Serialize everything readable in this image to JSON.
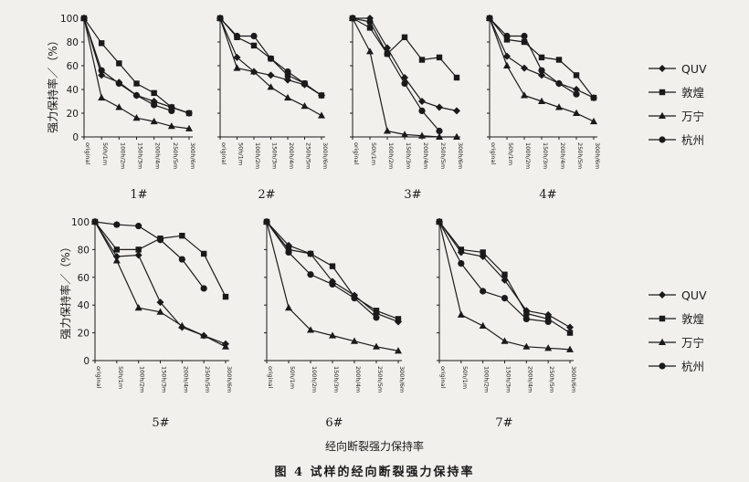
{
  "figure": {
    "caption": "图 4  试样的经向断裂强力保持率",
    "x_title": "经向断裂强力保持率",
    "y_title": "强力保持率／（%）"
  },
  "chart_data": [
    {
      "type": "line",
      "label": "1#",
      "categories": [
        "original",
        "50h/1m",
        "100h/2m",
        "150h/3m",
        "200h/4m",
        "250h/5m",
        "300h/6m"
      ],
      "ylim": [
        0,
        100
      ],
      "yticks": [
        0,
        20,
        40,
        60,
        80,
        100
      ],
      "series": [
        {
          "name": "QUV",
          "values": [
            100,
            52,
            46,
            35,
            30,
            25,
            20
          ]
        },
        {
          "name": "敦煌",
          "values": [
            100,
            79,
            62,
            45,
            37,
            25,
            20
          ]
        },
        {
          "name": "万宁",
          "values": [
            100,
            33,
            25,
            16,
            13,
            9,
            7
          ]
        },
        {
          "name": "杭州",
          "values": [
            100,
            56,
            45,
            35,
            27,
            22,
            null
          ]
        }
      ]
    },
    {
      "type": "line",
      "label": "2#",
      "categories": [
        "original",
        "50h/1m",
        "100h/2m",
        "150h/3m",
        "200h/4m",
        "250h/5m",
        "300h/6m"
      ],
      "ylim": [
        0,
        100
      ],
      "yticks": [
        0,
        20,
        40,
        60,
        80,
        100
      ],
      "series": [
        {
          "name": "QUV",
          "values": [
            100,
            67,
            55,
            52,
            48,
            44,
            35
          ]
        },
        {
          "name": "敦煌",
          "values": [
            100,
            84,
            77,
            66,
            52,
            45,
            35
          ]
        },
        {
          "name": "万宁",
          "values": [
            100,
            58,
            55,
            42,
            33,
            26,
            18
          ]
        },
        {
          "name": "杭州",
          "values": [
            100,
            85,
            85,
            66,
            55,
            45,
            null
          ]
        }
      ]
    },
    {
      "type": "line",
      "label": "3#",
      "categories": [
        "original",
        "50h/1m",
        "100h/2m",
        "150h/3m",
        "200h/4m",
        "250h/5m",
        "300h/6m"
      ],
      "ylim": [
        0,
        100
      ],
      "yticks": [
        0,
        20,
        40,
        60,
        80,
        100
      ],
      "series": [
        {
          "name": "QUV",
          "values": [
            100,
            100,
            75,
            50,
            30,
            25,
            22
          ]
        },
        {
          "name": "敦煌",
          "values": [
            100,
            92,
            70,
            84,
            65,
            67,
            50
          ]
        },
        {
          "name": "万宁",
          "values": [
            100,
            72,
            5,
            2,
            1,
            0,
            0
          ]
        },
        {
          "name": "杭州",
          "values": [
            100,
            97,
            70,
            45,
            22,
            5,
            null
          ]
        }
      ]
    },
    {
      "type": "line",
      "label": "4#",
      "categories": [
        "original",
        "50h/1m",
        "100h/2m",
        "150h/3m",
        "200h/4m",
        "250h/5m",
        "300h/6m"
      ],
      "ylim": [
        0,
        100
      ],
      "yticks": [
        0,
        20,
        40,
        60,
        80,
        100
      ],
      "series": [
        {
          "name": "QUV",
          "values": [
            100,
            68,
            58,
            52,
            45,
            40,
            33
          ]
        },
        {
          "name": "敦煌",
          "values": [
            100,
            82,
            80,
            67,
            65,
            52,
            33
          ]
        },
        {
          "name": "万宁",
          "values": [
            100,
            60,
            35,
            30,
            25,
            20,
            13
          ]
        },
        {
          "name": "杭州",
          "values": [
            100,
            85,
            85,
            56,
            45,
            36,
            null
          ]
        }
      ]
    },
    {
      "type": "line",
      "label": "5#",
      "categories": [
        "original",
        "50h/1m",
        "100h/2m",
        "150h/3m",
        "200h/4m",
        "250h/5m",
        "300h/6m"
      ],
      "ylim": [
        0,
        100
      ],
      "yticks": [
        0,
        20,
        40,
        60,
        80,
        100
      ],
      "series": [
        {
          "name": "QUV",
          "values": [
            100,
            75,
            76,
            42,
            24,
            18,
            12
          ]
        },
        {
          "name": "敦煌",
          "values": [
            100,
            80,
            80,
            88,
            90,
            77,
            46
          ]
        },
        {
          "name": "万宁",
          "values": [
            100,
            72,
            38,
            35,
            25,
            18,
            10
          ]
        },
        {
          "name": "杭州",
          "values": [
            100,
            98,
            97,
            87,
            73,
            52,
            null
          ]
        }
      ]
    },
    {
      "type": "line",
      "label": "6#",
      "categories": [
        "original",
        "50h/1m",
        "100h/2m",
        "150h/3m",
        "200h/4m",
        "250h/5m",
        "300h/6m"
      ],
      "ylim": [
        0,
        100
      ],
      "yticks": [
        0,
        20,
        40,
        60,
        80,
        100
      ],
      "series": [
        {
          "name": "QUV",
          "values": [
            100,
            83,
            77,
            57,
            47,
            34,
            28
          ]
        },
        {
          "name": "敦煌",
          "values": [
            100,
            80,
            77,
            68,
            46,
            36,
            30
          ]
        },
        {
          "name": "万宁",
          "values": [
            100,
            38,
            22,
            18,
            14,
            10,
            7
          ]
        },
        {
          "name": "杭州",
          "values": [
            100,
            78,
            62,
            55,
            45,
            31,
            null
          ]
        }
      ]
    },
    {
      "type": "line",
      "label": "7#",
      "categories": [
        "original",
        "50h/1m",
        "100h/2m",
        "150h/3m",
        "200h/4m",
        "250h/5m",
        "300h/6m"
      ],
      "ylim": [
        0,
        100
      ],
      "yticks": [
        0,
        20,
        40,
        60,
        80,
        100
      ],
      "series": [
        {
          "name": "QUV",
          "values": [
            100,
            78,
            75,
            58,
            36,
            33,
            24
          ]
        },
        {
          "name": "敦煌",
          "values": [
            100,
            80,
            78,
            62,
            34,
            30,
            20
          ]
        },
        {
          "name": "万宁",
          "values": [
            100,
            33,
            25,
            14,
            10,
            9,
            8
          ]
        },
        {
          "name": "杭州",
          "values": [
            100,
            70,
            50,
            45,
            30,
            28,
            null
          ]
        }
      ]
    }
  ],
  "legend": {
    "top": [
      "QUV",
      "敦煌",
      "万宁",
      "杭州"
    ],
    "bottom": [
      "QUV",
      "敦煌",
      "万宁",
      "杭州"
    ]
  },
  "colors": {
    "ink": "#1a1a1a",
    "paper": "#f1f0ec",
    "ghost": "#cfcdc6"
  }
}
